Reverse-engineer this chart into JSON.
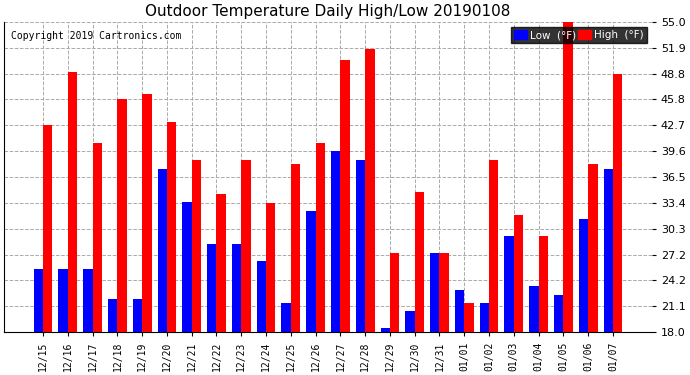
{
  "title": "Outdoor Temperature Daily High/Low 20190108",
  "copyright": "Copyright 2019 Cartronics.com",
  "legend_low": "Low  (°F)",
  "legend_high": "High  (°F)",
  "low_color": "#0000ff",
  "high_color": "#ff0000",
  "background_color": "#ffffff",
  "plot_bg_color": "#ffffff",
  "ylim": [
    18.0,
    55.0
  ],
  "yticks": [
    18.0,
    21.1,
    24.2,
    27.2,
    30.3,
    33.4,
    36.5,
    39.6,
    42.7,
    45.8,
    48.8,
    51.9,
    55.0
  ],
  "grid_color": "#aaaaaa",
  "dates": [
    "12/15",
    "12/16",
    "12/17",
    "12/18",
    "12/19",
    "12/20",
    "12/21",
    "12/22",
    "12/23",
    "12/24",
    "12/25",
    "12/26",
    "12/27",
    "12/28",
    "12/29",
    "12/30",
    "12/31",
    "01/01",
    "01/02",
    "01/03",
    "01/04",
    "01/05",
    "01/06",
    "01/07"
  ],
  "highs": [
    42.7,
    49.0,
    40.5,
    45.8,
    46.4,
    43.0,
    38.5,
    34.5,
    38.5,
    33.4,
    38.0,
    40.5,
    50.5,
    51.8,
    27.5,
    34.7,
    27.5,
    21.5,
    38.5,
    32.0,
    29.5,
    55.0,
    38.0,
    48.8
  ],
  "lows": [
    25.5,
    25.5,
    25.5,
    22.0,
    22.0,
    37.5,
    33.5,
    28.5,
    28.5,
    26.5,
    21.5,
    32.5,
    39.6,
    38.5,
    18.5,
    20.5,
    27.5,
    23.0,
    21.5,
    29.5,
    23.5,
    22.5,
    31.5,
    37.5
  ]
}
